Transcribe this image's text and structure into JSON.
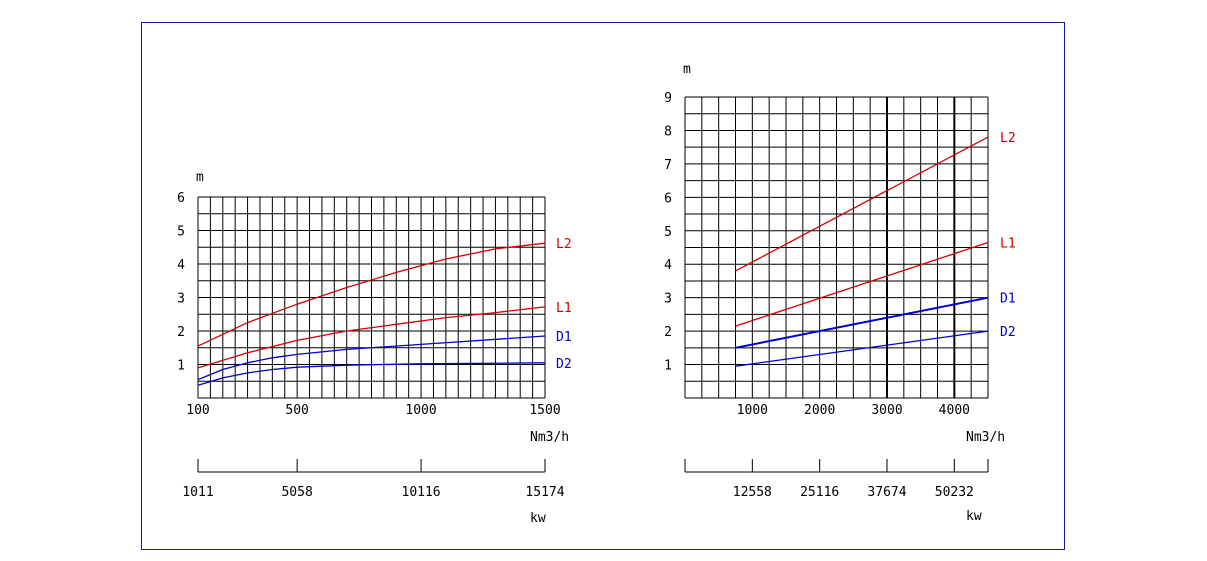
{
  "colors": {
    "frame": "#1a1aa8",
    "grid": "#000000",
    "red": "#d40000",
    "blue": "#0000c8",
    "text": "#000000"
  },
  "chart_data": [
    {
      "type": "line",
      "y_unit": "m",
      "x_unit": "Nm3/h",
      "power_unit": "kw",
      "xlim": [
        100,
        1500
      ],
      "ylim": [
        0,
        6
      ],
      "x_ticks": [
        "100",
        "500",
        "1000",
        "1500"
      ],
      "x_tick_values": [
        100,
        500,
        1000,
        1500
      ],
      "y_ticks": [
        "1",
        "2",
        "3",
        "4",
        "5",
        "6"
      ],
      "y_tick_values": [
        1,
        2,
        3,
        4,
        5,
        6
      ],
      "power_ticks": [
        "1011",
        "5058",
        "10116",
        "15174"
      ],
      "power_tick_values": [
        100,
        500,
        1000,
        1500
      ],
      "grid_x_step": 50,
      "grid_y_step": 0.5,
      "series": [
        {
          "name": "L2",
          "color": "red",
          "x": [
            100,
            300,
            500,
            700,
            900,
            1100,
            1300,
            1500
          ],
          "y": [
            1.55,
            2.25,
            2.8,
            3.3,
            3.75,
            4.15,
            4.45,
            4.62
          ]
        },
        {
          "name": "L1",
          "color": "red",
          "x": [
            100,
            300,
            500,
            700,
            900,
            1100,
            1300,
            1500
          ],
          "y": [
            0.9,
            1.35,
            1.72,
            2.0,
            2.2,
            2.4,
            2.55,
            2.72
          ]
        },
        {
          "name": "D1",
          "color": "blue",
          "x": [
            100,
            200,
            300,
            400,
            500,
            700,
            1000,
            1500
          ],
          "y": [
            0.55,
            0.85,
            1.05,
            1.2,
            1.3,
            1.45,
            1.6,
            1.85
          ]
        },
        {
          "name": "D2",
          "color": "blue",
          "x": [
            100,
            200,
            300,
            400,
            500,
            700,
            1000,
            1500
          ],
          "y": [
            0.38,
            0.6,
            0.75,
            0.85,
            0.92,
            0.98,
            1.02,
            1.05
          ]
        }
      ]
    },
    {
      "type": "line",
      "y_unit": "m",
      "x_unit": "Nm3/h",
      "power_unit": "kw",
      "xlim": [
        0,
        4500
      ],
      "ylim": [
        0,
        9
      ],
      "x_ticks": [
        "1000",
        "2000",
        "3000",
        "4000"
      ],
      "x_tick_values": [
        1000,
        2000,
        3000,
        4000
      ],
      "y_ticks": [
        "1",
        "2",
        "3",
        "4",
        "5",
        "6",
        "7",
        "8",
        "9"
      ],
      "y_tick_values": [
        1,
        2,
        3,
        4,
        5,
        6,
        7,
        8,
        9
      ],
      "power_ticks": [
        "12558",
        "25116",
        "37674",
        "50232"
      ],
      "power_tick_values": [
        1000,
        2000,
        3000,
        4000
      ],
      "grid_x_step": 250,
      "grid_y_step": 0.5,
      "heavy_x_lines": [
        3000,
        4000
      ],
      "series": [
        {
          "name": "L2",
          "color": "red",
          "x": [
            750,
            4500
          ],
          "y": [
            3.8,
            7.8
          ]
        },
        {
          "name": "L1",
          "color": "red",
          "x": [
            750,
            4500
          ],
          "y": [
            2.15,
            4.65
          ]
        },
        {
          "name": "D1",
          "color": "blue",
          "x": [
            750,
            4500
          ],
          "y": [
            1.5,
            3.0
          ]
        },
        {
          "name": "D2",
          "color": "blue",
          "x": [
            750,
            4500
          ],
          "y": [
            0.95,
            2.0
          ]
        }
      ]
    }
  ]
}
